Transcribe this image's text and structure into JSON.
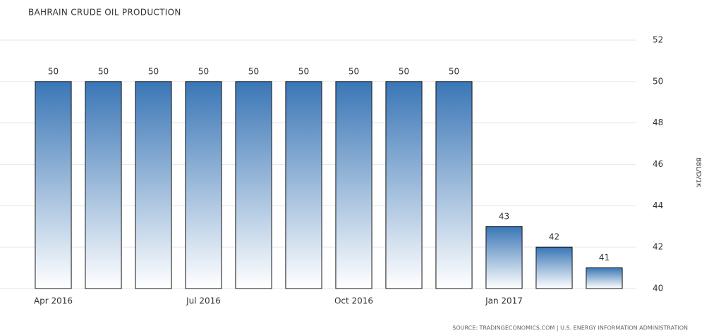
{
  "chart_data": {
    "type": "bar",
    "title": "BAHRAIN CRUDE OIL PRODUCTION",
    "y_axis_label": "BBL/D/1K",
    "source": "SOURCE: TRADINGECONOMICS.COM | U.S. ENERGY INFORMATION ADMINISTRATION",
    "categories": [
      "Apr 2016",
      null,
      null,
      "Jul 2016",
      null,
      null,
      "Oct 2016",
      null,
      null,
      "Jan 2017",
      null,
      null
    ],
    "values": [
      50,
      50,
      50,
      50,
      50,
      50,
      50,
      50,
      50,
      43,
      42,
      41
    ],
    "color": "#3a76b6",
    "ylim": [
      40,
      52
    ],
    "yticks": [
      40,
      42,
      44,
      46,
      48,
      50,
      52
    ],
    "grid": true
  }
}
